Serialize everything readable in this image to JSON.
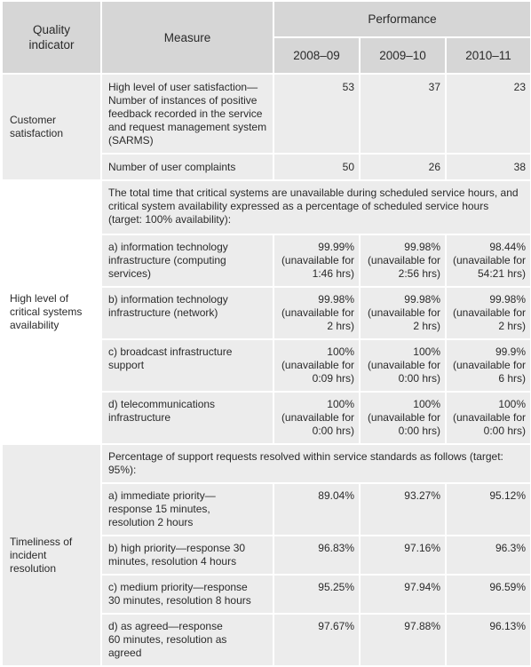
{
  "header": {
    "quality_indicator": "Quality indicator",
    "measure": "Measure",
    "performance": "Performance",
    "years": [
      "2008–09",
      "2009–10",
      "2010–11"
    ]
  },
  "sections": [
    {
      "indicator": "Customer satisfaction",
      "rows": [
        {
          "measure": "High level of user satisfaction—Number of instances of positive feedback recorded in the service and request management system (SARMS)",
          "values": [
            "53",
            "37",
            "23"
          ]
        },
        {
          "measure": "Number of user complaints",
          "values": [
            "50",
            "26",
            "38"
          ]
        }
      ]
    },
    {
      "indicator": "High level of critical systems availability",
      "intro": "The total time that critical systems are unavailable during scheduled service hours, and critical system availability expressed as a percentage of scheduled service hours (target: 100% availability):",
      "rows": [
        {
          "measure": "a) information technology infrastructure (computing services)",
          "values": [
            "99.99% (unavailable for 1:46 hrs)",
            "99.98% (unavailable for 2:56 hrs)",
            "98.44% (unavailable for 54:21 hrs)"
          ]
        },
        {
          "measure": "b) information technology infrastructure (network)",
          "values": [
            "99.98% (unavailable for 2 hrs)",
            "99.98% (unavailable for 2 hrs)",
            "99.98% (unavailable for 2 hrs)"
          ]
        },
        {
          "measure": "c) broadcast infrastructure support",
          "values": [
            "100% (unavailable for 0:09 hrs)",
            "100% (unavailable for 0:00 hrs)",
            "99.9% (unavailable for 6 hrs)"
          ]
        },
        {
          "measure": "d) telecommunications infrastructure",
          "values": [
            "100% (unavailable for 0:00 hrs)",
            "100% (unavailable for 0:00 hrs)",
            "100% (unavailable for 0:00 hrs)"
          ]
        }
      ]
    },
    {
      "indicator": "Timeliness of incident resolution",
      "intro": "Percentage of support requests resolved within service standards as follows (target: 95%):",
      "rows": [
        {
          "measure": "a) immediate priority—response 15 minutes, resolution 2 hours",
          "values": [
            "89.04%",
            "93.27%",
            "95.12%"
          ]
        },
        {
          "measure": "b) high priority—response 30 minutes, resolution 4 hours",
          "values": [
            "96.83%",
            "97.16%",
            "96.3%"
          ]
        },
        {
          "measure": "c) medium priority—response 30 minutes, resolution 8 hours",
          "values": [
            "95.25%",
            "97.94%",
            "96.59%"
          ]
        },
        {
          "measure": "d) as agreed—response 60 minutes, resolution as agreed",
          "values": [
            "97.67%",
            "97.88%",
            "96.13%"
          ]
        }
      ]
    }
  ]
}
